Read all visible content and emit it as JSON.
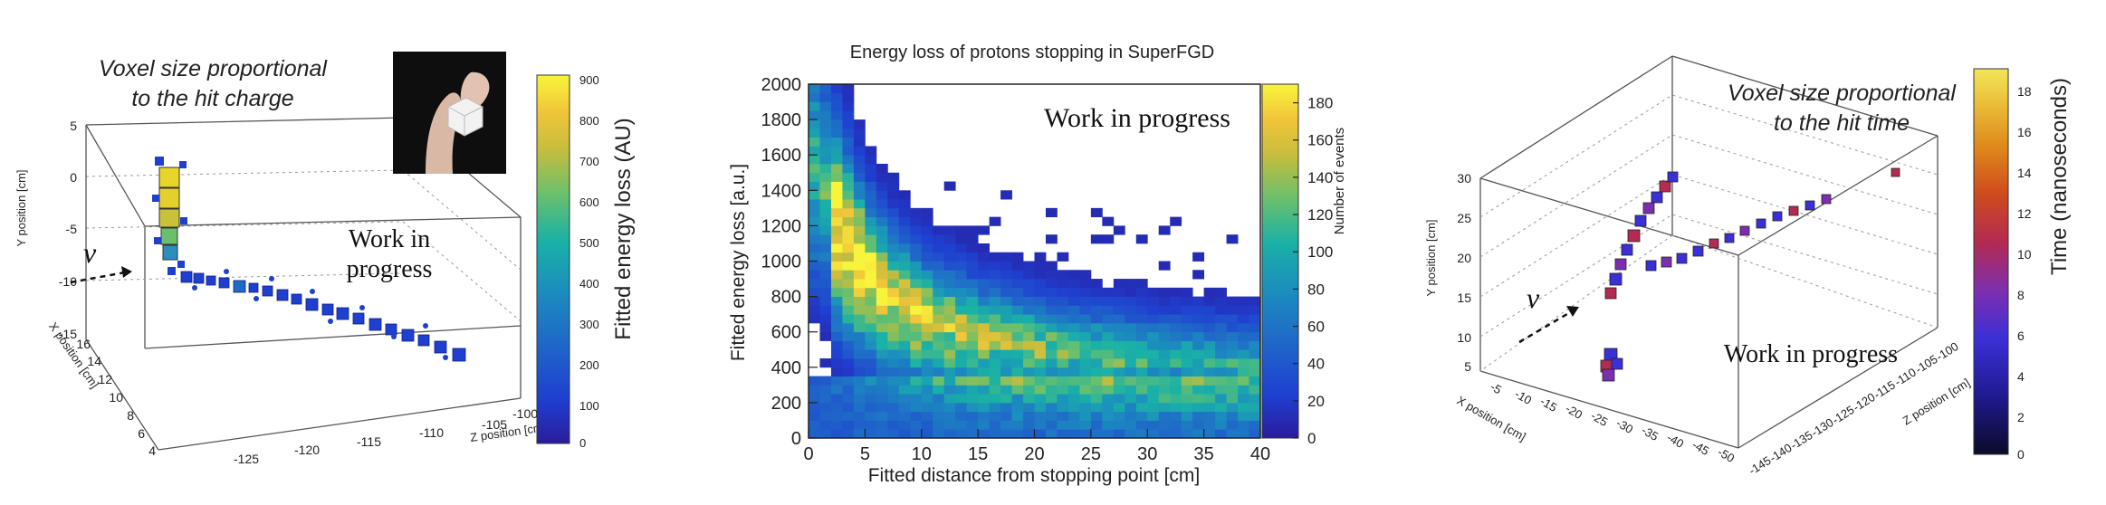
{
  "panel1": {
    "annotation_line1": "Voxel size proportional",
    "annotation_line2": "to the hit charge",
    "watermark_line1": "Work in",
    "watermark_line2": "progress",
    "nu_symbol": "ν",
    "y_axis_label": "Y position [cm]",
    "x_axis_label": "X position [cm]",
    "z_axis_label": "Z position [cm]",
    "y_ticks": [
      "5",
      "0",
      "-5",
      "-10",
      "-15"
    ],
    "x_ticks": [
      "16",
      "14",
      "12",
      "10",
      "8",
      "6",
      "4"
    ],
    "z_ticks": [
      "-125",
      "-120",
      "-115",
      "-110",
      "-105",
      "-100"
    ],
    "colorbar_label": "Fitted energy loss (AU)",
    "colorbar_ticks": [
      "900",
      "800",
      "700",
      "600",
      "500",
      "400",
      "300",
      "200",
      "100",
      "0"
    ],
    "colorbar_range": [
      0,
      900
    ],
    "colors": {
      "track": "#1b3fd0",
      "high": "#e8d52a",
      "box": "#555555"
    }
  },
  "chart_data": [
    {
      "type": "scatter",
      "title": "",
      "xlabel": "Z position [cm]",
      "ylabel": "Y position [cm]",
      "zlabel": "X position [cm]",
      "zlim": [
        -127,
        -98
      ],
      "ylim": [
        -15,
        5
      ],
      "xlim": [
        3,
        17
      ],
      "color_label": "Fitted energy loss (AU)",
      "color_range": [
        0,
        900
      ],
      "description_points": [
        {
          "z": -126,
          "y": 2,
          "x": 12,
          "q": 900
        },
        {
          "z": -126,
          "y": -1,
          "x": 12,
          "q": 800
        },
        {
          "z": -126,
          "y": -4,
          "x": 12,
          "q": 650
        },
        {
          "z": -125,
          "y": -7,
          "x": 12,
          "q": 400
        },
        {
          "z": -123,
          "y": -9,
          "x": 11,
          "q": 300
        },
        {
          "z": -120,
          "y": -9.5,
          "x": 10,
          "q": 350
        },
        {
          "z": -117,
          "y": -10,
          "x": 9,
          "q": 250
        },
        {
          "z": -113,
          "y": -11,
          "x": 8,
          "q": 250
        },
        {
          "z": -110,
          "y": -12,
          "x": 7,
          "q": 200
        },
        {
          "z": -107,
          "y": -13,
          "x": 6,
          "q": 200
        },
        {
          "z": -104,
          "y": -13.5,
          "x": 5.5,
          "q": 180
        },
        {
          "z": -101,
          "y": -14,
          "x": 5,
          "q": 180
        }
      ]
    },
    {
      "type": "heatmap",
      "title": "Energy loss of protons stopping in SuperFGD",
      "xlabel": "Fitted distance from stopping point [cm]",
      "ylabel": "Fitted energy loss [a.u.]",
      "xlim": [
        0,
        40
      ],
      "ylim": [
        0,
        2000
      ],
      "x_ticks": [
        "0",
        "5",
        "10",
        "15",
        "20",
        "25",
        "30",
        "35",
        "40"
      ],
      "y_ticks": [
        "0",
        "200",
        "400",
        "600",
        "800",
        "1000",
        "1200",
        "1400",
        "1600",
        "1800",
        "2000"
      ],
      "z_label": "Number of events",
      "z_range": [
        0,
        190
      ],
      "z_ticks": [
        "0",
        "20",
        "40",
        "60",
        "80",
        "100",
        "120",
        "140",
        "160",
        "180"
      ],
      "watermark": "Work in progress",
      "ridge": {
        "x": [
          1,
          2,
          3,
          5,
          7,
          10,
          15,
          20,
          25,
          30,
          35,
          40
        ],
        "y": [
          1450,
          1250,
          1100,
          900,
          760,
          640,
          530,
          470,
          430,
          400,
          380,
          370
        ]
      }
    },
    {
      "type": "scatter",
      "title": "",
      "xlabel": "X position [cm]",
      "ylabel": "Y position [cm]",
      "zlabel": "Z position [cm]",
      "xlim": [
        -50,
        -5
      ],
      "ylim": [
        4,
        31
      ],
      "zlim": [
        -145,
        -100
      ],
      "color_label": "Time (nanoseconds)",
      "color_range": [
        0,
        19
      ],
      "description_points": [
        {
          "x": -30,
          "y": 7,
          "z": -140,
          "t": 6
        },
        {
          "x": -25,
          "y": 15,
          "z": -135,
          "t": 5
        },
        {
          "x": -20,
          "y": 22,
          "z": -130,
          "t": 4
        },
        {
          "x": -17,
          "y": 27,
          "z": -125,
          "t": 3
        },
        {
          "x": -24,
          "y": 17,
          "z": -128,
          "t": 4
        },
        {
          "x": -20,
          "y": 19,
          "z": -120,
          "t": 3
        },
        {
          "x": -16,
          "y": 21,
          "z": -112,
          "t": 3
        },
        {
          "x": -13,
          "y": 23,
          "z": -105,
          "t": 4
        },
        {
          "x": -10,
          "y": 29,
          "z": -100,
          "t": 9
        }
      ]
    }
  ],
  "panel2": {
    "title": "Energy loss of protons stopping in SuperFGD",
    "xlabel": "Fitted distance from stopping point [cm]",
    "ylabel": "Fitted energy loss [a.u.]",
    "watermark": "Work in progress",
    "colorbar_label": "Number of events"
  },
  "panel3": {
    "annotation_line1": "Voxel size proportional",
    "annotation_line2": "to the hit time",
    "watermark": "Work in progress",
    "nu_symbol": "ν",
    "y_axis_label": "Y position [cm]",
    "x_axis_label": "X position [cm]",
    "z_axis_label": "Z position [cm]",
    "y_ticks": [
      "30",
      "25",
      "20",
      "15",
      "10",
      "5"
    ],
    "x_ticks": [
      "-5",
      "-10",
      "-15",
      "-20",
      "-25",
      "-30",
      "-35",
      "-40",
      "-45",
      "-50"
    ],
    "z_ticks": [
      "-145",
      "-140",
      "-135",
      "-130",
      "-125",
      "-120",
      "-115",
      "-110",
      "-105",
      "-100"
    ],
    "colorbar_label": "Time (nanoseconds)",
    "colorbar_ticks": [
      "18",
      "16",
      "14",
      "12",
      "10",
      "8",
      "6",
      "4",
      "2",
      "0"
    ],
    "colorbar_range": [
      0,
      19
    ]
  }
}
